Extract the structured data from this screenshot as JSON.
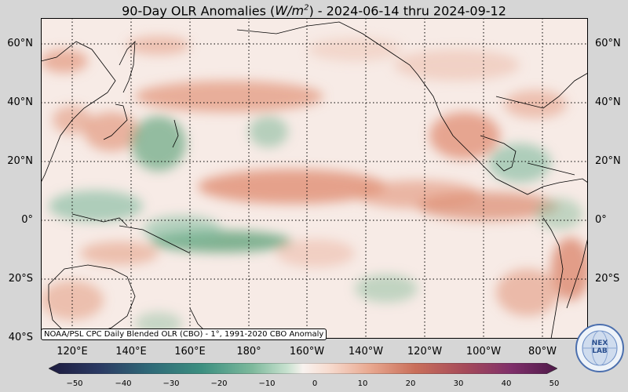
{
  "title": {
    "prefix": "90-Day OLR Anomalies (",
    "unit_base": "W/m",
    "unit_exp": "2",
    "suffix": ") - 2024-06-14 thru 2024-09-12"
  },
  "lat_labels_left": [
    "60°N",
    "40°N",
    "20°N",
    "0°",
    "20°S",
    "40°S"
  ],
  "lat_labels_right": [
    "60°N",
    "40°N",
    "20°N",
    "0°",
    "20°S"
  ],
  "lon_labels": [
    "120°E",
    "140°E",
    "160°E",
    "180°",
    "160°W",
    "140°W",
    "120°W",
    "100°W",
    "80°W"
  ],
  "source_text": "NOAA/PSL CPC Daily Blended OLR (CBO) - 1°, 1991-2020 CBO Anomaly",
  "colorbar": {
    "ticks": [
      "−50",
      "−40",
      "−30",
      "−20",
      "−10",
      "0",
      "10",
      "20",
      "30",
      "40",
      "50"
    ],
    "colors": [
      "#1d1b3f",
      "#2b3a63",
      "#2f6a78",
      "#3c8f80",
      "#7db99c",
      "#c9e2d0",
      "#f8f2ef",
      "#f7dcd0",
      "#e9a991",
      "#c96f5a",
      "#a54a5a",
      "#7f2f6a",
      "#4f1a4a"
    ]
  },
  "logo": {
    "text": "NEXLAB",
    "icon": "nexlab-globe-logo"
  },
  "map": {
    "background": "#f7ebe6",
    "positive_color": "#e39a80",
    "negative_color": "#6aa882"
  }
}
